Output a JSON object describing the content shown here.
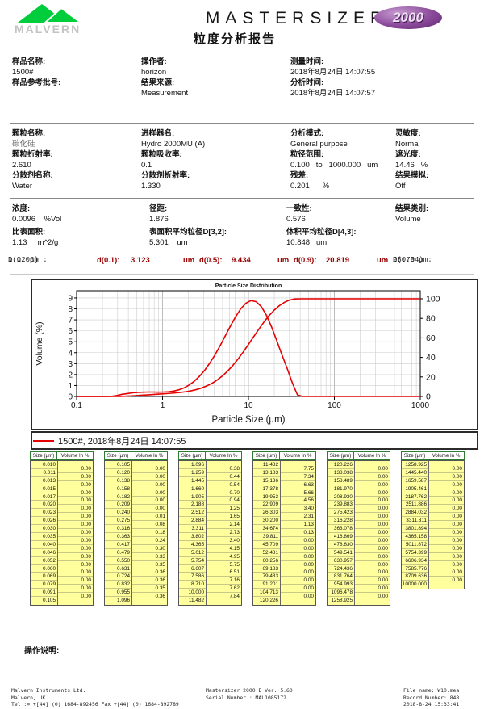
{
  "header": {
    "logo_text": "MALVERN",
    "product_name": "MASTERSIZER",
    "badge_text": "2000",
    "report_title": "粒度分析报告",
    "logo_green": "#00cd3c",
    "badge_purple": "#7a3b8f"
  },
  "info_sections": [
    {
      "name": "sample-info",
      "columns": [
        {
          "fields": [
            {
              "name": "sample-name",
              "label": "样品名称:",
              "value": "1500#"
            },
            {
              "name": "sample-ref-batch",
              "label": "样品参考批号:",
              "value": ""
            }
          ]
        },
        {
          "fields": [
            {
              "name": "operator",
              "label": "操作者:",
              "value": "horizon"
            },
            {
              "name": "result-source",
              "label": "结果来源:",
              "value": "Measurement"
            }
          ]
        },
        {
          "fields": [
            {
              "name": "measure-time",
              "label": "测量时间:",
              "value": "2018年8月24日 14:07:55"
            },
            {
              "name": "analysis-time",
              "label": "分析时间:",
              "value": "2018年8月24日 14:07:57"
            }
          ]
        }
      ]
    },
    {
      "name": "measurement-settings",
      "columns": [
        {
          "fields": [
            {
              "name": "particle-name",
              "label": "颗粒名称:",
              "value": "碳化硅",
              "muted": true
            },
            {
              "name": "particle-ri",
              "label": "颗粒折射率:",
              "value": "2.610"
            },
            {
              "name": "dispersant-name",
              "label": "分散剂名称:",
              "value": "Water"
            }
          ]
        },
        {
          "fields": [
            {
              "name": "accessory-name",
              "label": "进样器名:",
              "value": "Hydro 2000MU (A)"
            },
            {
              "name": "particle-absorption",
              "label": "颗粒吸收率:",
              "value": "0.1"
            },
            {
              "name": "dispersant-ri",
              "label": "分散剂折射率:",
              "value": "1.330"
            }
          ]
        },
        {
          "fields": [
            {
              "name": "analysis-model",
              "label": "分析模式:",
              "value": "General purpose"
            },
            {
              "name": "size-range",
              "label": "粒径范围:",
              "value": "0.100   to   1000.000   um"
            },
            {
              "name": "weighted-residual",
              "label": "残差:",
              "value": "0.201      %"
            }
          ]
        },
        {
          "fields": [
            {
              "name": "sensitivity",
              "label": "灵敏度:",
              "value": "Normal"
            },
            {
              "name": "obscuration",
              "label": "遮光度:",
              "value": "14.46   %"
            },
            {
              "name": "result-emulation",
              "label": "结果模拟:",
              "value": "Off"
            }
          ]
        }
      ]
    },
    {
      "name": "result-statistics",
      "columns": [
        {
          "fields": [
            {
              "name": "concentration",
              "label": "浓度:",
              "value": "0.0096    %Vol"
            },
            {
              "name": "specific-surface-area",
              "label": "比表面积:",
              "value": "1.13     m^2/g"
            }
          ]
        },
        {
          "fields": [
            {
              "name": "span",
              "label": "径距:",
              "value": "1.876"
            },
            {
              "name": "surface-weighted-mean-d32",
              "label": "表面积平均粒径D[3,2]:",
              "value": "5.301    um"
            }
          ]
        },
        {
          "fields": [
            {
              "name": "uniformity",
              "label": "一致性:",
              "value": "0.576"
            },
            {
              "name": "volume-weighted-mean-d43",
              "label": "体积平均粒径D[4,3]:",
              "value": "10.848   um"
            }
          ]
        },
        {
          "fields": [
            {
              "name": "result-units",
              "label": "结果类别:",
              "value": "Volume"
            }
          ]
        }
      ]
    }
  ],
  "d_values": {
    "accent": "#990000",
    "d003_label": "D(0.03) :",
    "d003_value": "1.12 μm",
    "d01_label": "d(0.1):",
    "d01_value": "3.123",
    "d01_unit": "um",
    "d05_label": "d(0.5):",
    "d05_value": "9.434",
    "d05_unit": "um",
    "d09_label": "d(0.9):",
    "d09_value": "20.819",
    "d09_unit": "um",
    "d094_label": "D(0.94) :",
    "d094_value": "23.73 μm"
  },
  "chart_data": {
    "type": "line",
    "title": "Particle Size Distribution",
    "xlabel": "Particle Size (µm)",
    "ylabel": "Volume (%)",
    "x_scale": "log",
    "xlim": [
      0.1,
      1000
    ],
    "x_ticks": [
      "0.1",
      "1",
      "10",
      "100",
      "1000"
    ],
    "ylim_left": [
      0,
      9.66
    ],
    "y_ticks_left": [
      0,
      1,
      2,
      3,
      4,
      5,
      6,
      7,
      8,
      9
    ],
    "ylim_right": [
      0,
      100
    ],
    "y_ticks_right": [
      0,
      20,
      40,
      60,
      80,
      100
    ],
    "grid": true,
    "legend": "1500#, 2018年8月24日 14:07:55",
    "line_color": "#e60000",
    "series": [
      {
        "name": "volume-frequency",
        "axis": "left"
      },
      {
        "name": "cumulative-undersize",
        "axis": "right"
      }
    ],
    "bin_edges_um": [
      0.01,
      0.011,
      0.013,
      0.015,
      0.017,
      0.02,
      0.023,
      0.026,
      0.03,
      0.035,
      0.04,
      0.046,
      0.052,
      0.06,
      0.069,
      0.079,
      0.091,
      0.105,
      0.12,
      0.138,
      0.158,
      0.182,
      0.209,
      0.24,
      0.275,
      0.316,
      0.363,
      0.417,
      0.479,
      0.55,
      0.631,
      0.724,
      0.832,
      0.955,
      1.096,
      1.259,
      1.445,
      1.66,
      1.905,
      2.188,
      2.512,
      2.884,
      3.311,
      3.802,
      4.365,
      5.012,
      5.754,
      6.607,
      7.586,
      8.71,
      10.0,
      11.482,
      13.183,
      15.136,
      17.378,
      19.953,
      22.909,
      26.303,
      30.2,
      34.674,
      39.811,
      45.709,
      52.481,
      60.256,
      69.183,
      79.433,
      91.201,
      104.713,
      120.226,
      138.038,
      158.489,
      181.97,
      208.93,
      239.883,
      275.423,
      316.228,
      363.078,
      416.869,
      478.63,
      549.541,
      630.957,
      724.436,
      831.764,
      954.993,
      1096.478,
      1258.925,
      1445.44,
      1659.587,
      1905.461,
      2187.762,
      2511.886,
      2884.032,
      3311.311,
      3801.894,
      4365.158,
      5011.872,
      5754.399,
      6606.934,
      7585.776,
      8709.636,
      10000.0
    ],
    "volume_in_percent": [
      0,
      0,
      0,
      0,
      0,
      0,
      0,
      0,
      0,
      0,
      0,
      0,
      0,
      0,
      0,
      0,
      0,
      0,
      0,
      0,
      0,
      0,
      0,
      0.01,
      0.08,
      0.18,
      0.24,
      0.3,
      0.33,
      0.35,
      0.36,
      0.36,
      0.35,
      0.36,
      0.38,
      0.44,
      0.54,
      0.7,
      0.94,
      1.25,
      1.65,
      2.14,
      2.73,
      3.4,
      4.15,
      4.95,
      5.75,
      6.51,
      7.16,
      7.62,
      7.84,
      7.75,
      7.34,
      6.63,
      5.66,
      4.56,
      3.4,
      2.31,
      1.13,
      0.13,
      0,
      0,
      0,
      0,
      0,
      0,
      0,
      0,
      0,
      0,
      0,
      0,
      0,
      0,
      0,
      0,
      0,
      0,
      0,
      0,
      0,
      0,
      0,
      0,
      0,
      0,
      0,
      0,
      0,
      0,
      0,
      0,
      0,
      0,
      0,
      0,
      0,
      0,
      0,
      0
    ]
  },
  "tables": {
    "headers": {
      "size": "Size (µm)",
      "volume": "Volume In %"
    },
    "cell_bg": "#ffff9e",
    "header_border": "#2e7d32",
    "groups": [
      {
        "start": 0,
        "edges": 18
      },
      {
        "start": 17,
        "edges": 18
      },
      {
        "start": 34,
        "edges": 18
      },
      {
        "start": 51,
        "edges": 18
      },
      {
        "start": 68,
        "edges": 18
      },
      {
        "start": 85,
        "edges": 16
      }
    ]
  },
  "footer": {
    "instructions_label": "操作说明:",
    "company_lines": [
      "Malvern Instruments Ltd.",
      "Malvern, UK",
      "Tel := +[44] (0) 1684-892456 Fax +[44] (0) 1684-892789"
    ],
    "software_lines": [
      "Mastersizer 2000 E Ver. 5.60",
      "Serial Number : MAL1085172"
    ],
    "file_lines": [
      "File name: W10.mea",
      "Record Number: 848",
      "2018-8-24 15:33:41"
    ]
  }
}
